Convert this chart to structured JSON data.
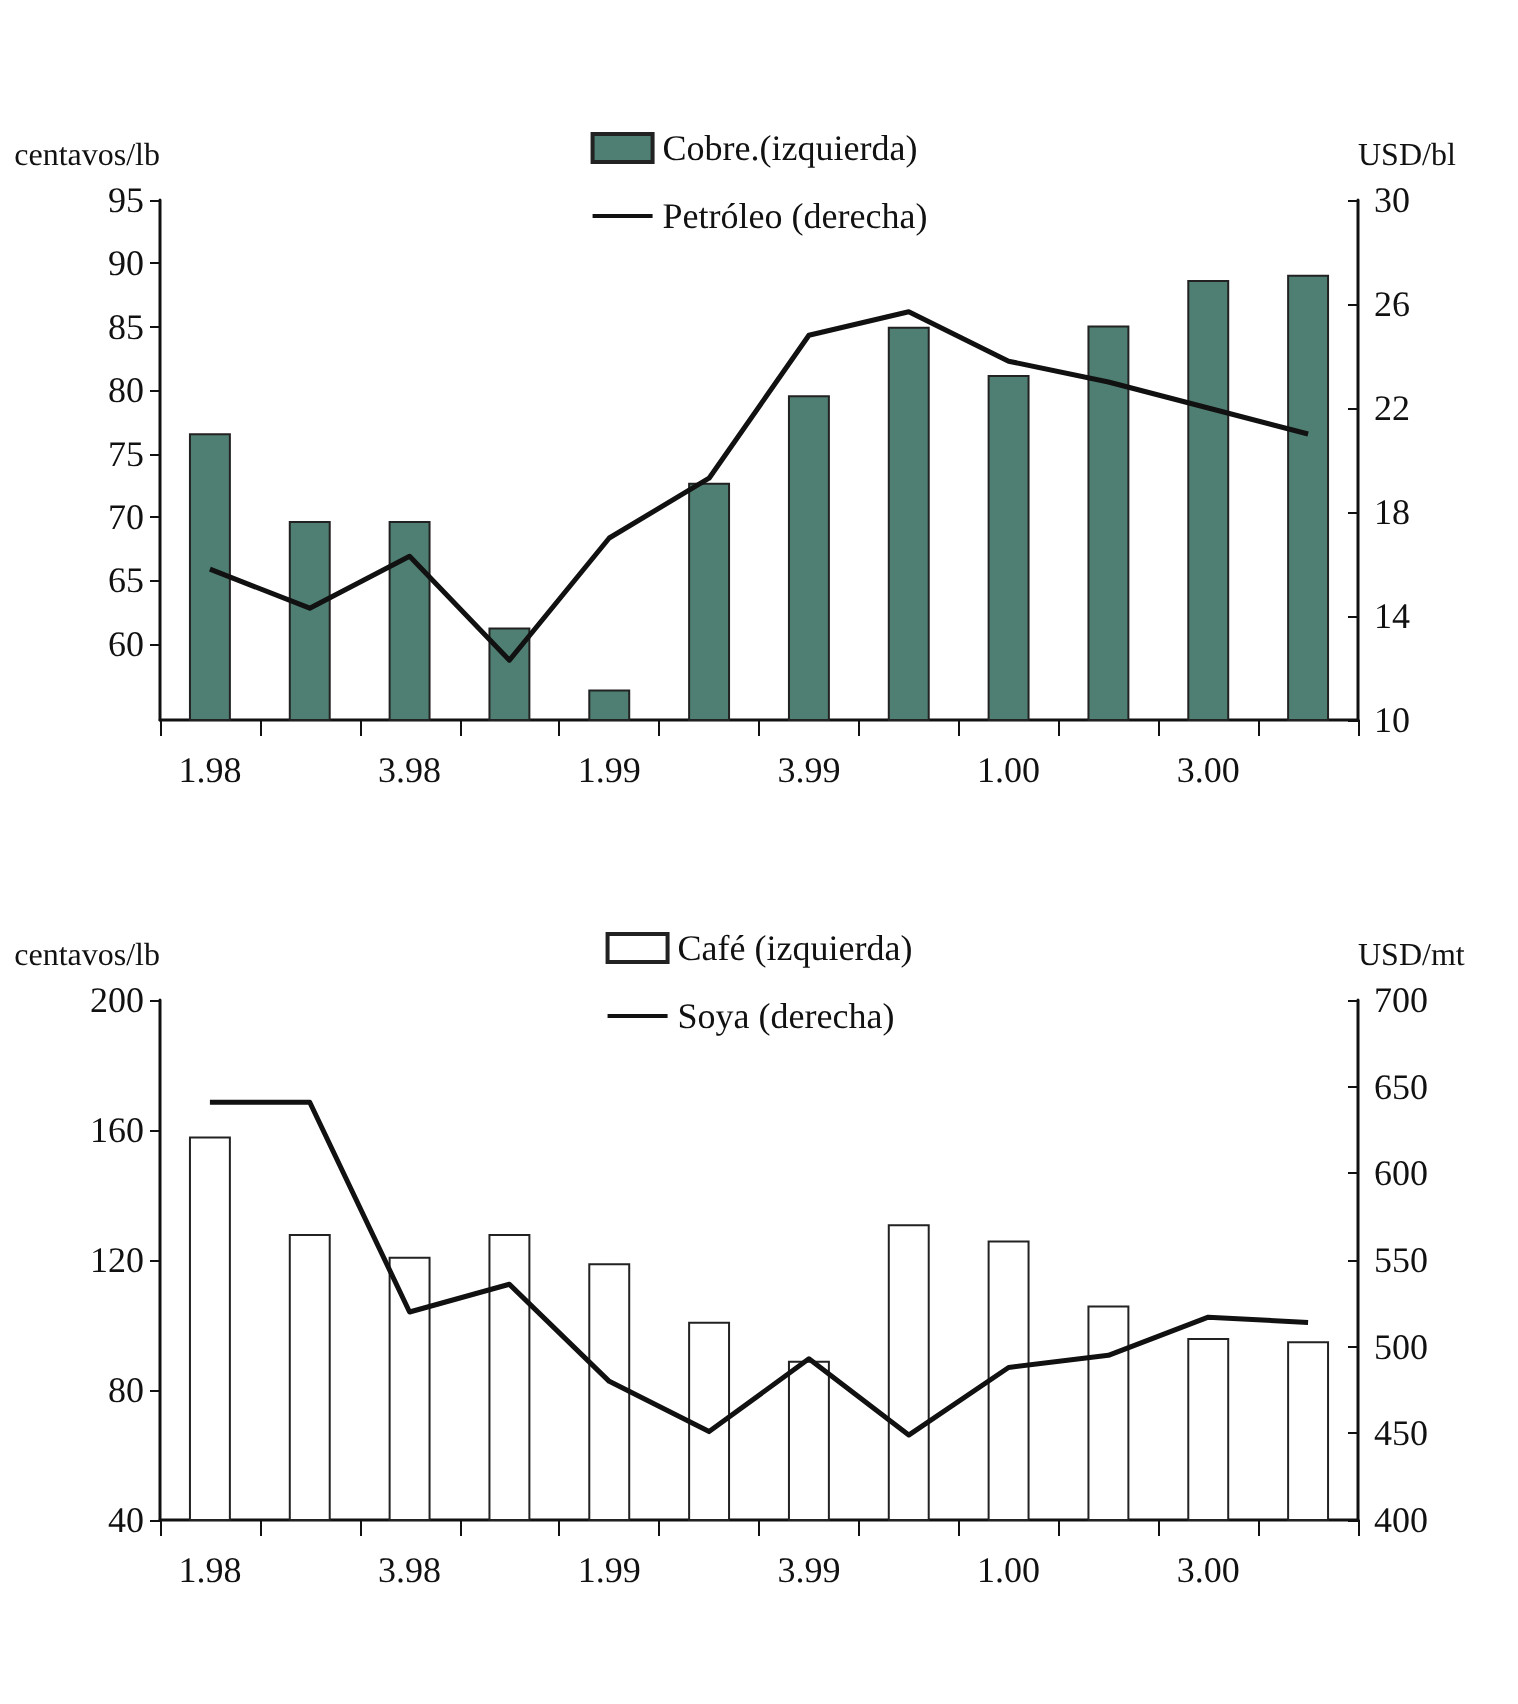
{
  "chart_data": [
    {
      "type": "bar",
      "categories": [
        "1.98",
        null,
        "3.98",
        null,
        "1.99",
        null,
        "3.99",
        null,
        "1.00",
        null,
        "3.00",
        null
      ],
      "ylabel": "centavos/lb",
      "y2label": "USD/bl",
      "ylim": [
        54,
        95
      ],
      "yticks": [
        60,
        65,
        70,
        75,
        80,
        85,
        90,
        95
      ],
      "y2lim": [
        10,
        30
      ],
      "y2ticks": [
        10,
        14,
        18,
        22,
        26,
        30
      ],
      "legend": "top",
      "grid": false,
      "marker": "none",
      "series": [
        {
          "name": "Cobre.(izquierda)",
          "color": "#4f7f72",
          "values": [
            76.6,
            69.7,
            69.7,
            61.3,
            56.4,
            72.7,
            79.6,
            85.0,
            81.2,
            85.1,
            88.7,
            89.1
          ]
        },
        {
          "name": "Petróleo (derecha)",
          "type": "line",
          "axis": "y2",
          "color": "#111111",
          "values": [
            15.8,
            14.3,
            16.3,
            12.3,
            17.0,
            19.3,
            24.8,
            25.7,
            23.8,
            23.0,
            22.0,
            21.0
          ]
        }
      ]
    },
    {
      "type": "bar",
      "categories": [
        "1.98",
        null,
        "3.98",
        null,
        "1.99",
        null,
        "3.99",
        null,
        "1.00",
        null,
        "3.00",
        null
      ],
      "ylabel": "centavos/lb",
      "y2label": "USD/mt",
      "ylim": [
        40,
        200
      ],
      "yticks": [
        40,
        80,
        120,
        160,
        200
      ],
      "y2lim": [
        400,
        700
      ],
      "y2ticks": [
        400,
        450,
        500,
        550,
        600,
        650,
        700
      ],
      "legend": "top",
      "grid": false,
      "marker": "none",
      "series": [
        {
          "name": "Café (izquierda)",
          "color": "#ffffff",
          "values": [
            158,
            128,
            121,
            128,
            119,
            101,
            89,
            131,
            126,
            106,
            96,
            95
          ]
        },
        {
          "name": "Soya (derecha)",
          "type": "line",
          "axis": "y2",
          "color": "#111111",
          "values": [
            641,
            641,
            520,
            536,
            480,
            451,
            493,
            449,
            488,
            495,
            517,
            514
          ]
        }
      ]
    }
  ]
}
